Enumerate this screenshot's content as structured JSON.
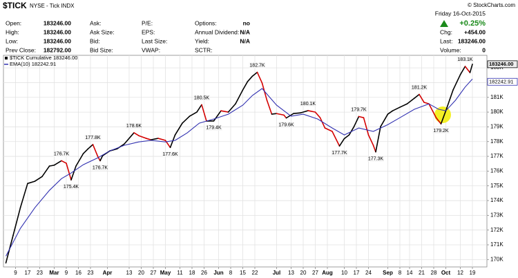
{
  "quote": {
    "copyright": "© StockCharts.com",
    "rows": [
      [
        {
          "label": "Open:",
          "value": "183246.00"
        },
        {
          "label": "Ask:"
        },
        {
          "label": "P/E:"
        },
        {
          "label": "Options:",
          "value": "no"
        }
      ],
      [
        {
          "label": "High:",
          "value": "183246.00"
        },
        {
          "label": "Ask Size:"
        },
        {
          "label": "EPS:"
        },
        {
          "label": "Annual Dividend:",
          "value": "N/A"
        }
      ],
      [
        {
          "label": "Low:",
          "value": "183246.00"
        },
        {
          "label": "Bid:"
        },
        {
          "label": "Last Size:"
        },
        {
          "label": "Yield:",
          "value": "N/A"
        }
      ],
      [
        {
          "label": "Prev Close:",
          "value": "182792.00"
        },
        {
          "label": "Bid Size:"
        },
        {
          "label": "VWAP:"
        },
        {
          "label": "SCTR:"
        }
      ]
    ],
    "date": "Friday  16-Oct-2015",
    "change_pct": "+0.25%",
    "summary": [
      {
        "label": "Chg:",
        "value": "+454.00"
      },
      {
        "label": "Last:",
        "value": "183246.00"
      },
      {
        "label": "Volume:",
        "value": "0"
      }
    ]
  },
  "chart_data": {
    "type": "line",
    "title": "$TICK",
    "subtitle": "NYSE - Tick INDX",
    "xlim": [
      0,
      200
    ],
    "ylim": [
      169500,
      183850
    ],
    "grid": true,
    "xticks": [
      {
        "value": 5,
        "label": "9"
      },
      {
        "value": 10,
        "label": "17"
      },
      {
        "value": 15,
        "label": "23"
      },
      {
        "value": 21,
        "label": "Mar"
      },
      {
        "value": 26,
        "label": "9"
      },
      {
        "value": 31,
        "label": "16"
      },
      {
        "value": 36,
        "label": "23"
      },
      {
        "value": 43,
        "label": "Apr"
      },
      {
        "value": 52,
        "label": "13"
      },
      {
        "value": 57,
        "label": "20"
      },
      {
        "value": 62,
        "label": "27"
      },
      {
        "value": 67,
        "label": "May"
      },
      {
        "value": 73,
        "label": "11"
      },
      {
        "value": 78,
        "label": "18"
      },
      {
        "value": 83,
        "label": "26"
      },
      {
        "value": 89,
        "label": "Jun"
      },
      {
        "value": 94,
        "label": "8"
      },
      {
        "value": 99,
        "label": "15"
      },
      {
        "value": 104,
        "label": "22"
      },
      {
        "value": 113,
        "label": "Jul"
      },
      {
        "value": 119,
        "label": "13"
      },
      {
        "value": 124,
        "label": "20"
      },
      {
        "value": 129,
        "label": "27"
      },
      {
        "value": 134,
        "label": "Aug"
      },
      {
        "value": 141,
        "label": "10"
      },
      {
        "value": 146,
        "label": "17"
      },
      {
        "value": 151,
        "label": "24"
      },
      {
        "value": 159,
        "label": "Sep"
      },
      {
        "value": 164,
        "label": "8"
      },
      {
        "value": 168,
        "label": "14"
      },
      {
        "value": 173,
        "label": "21"
      },
      {
        "value": 178,
        "label": "28"
      },
      {
        "value": 183,
        "label": "Oct"
      },
      {
        "value": 189,
        "label": "12"
      },
      {
        "value": 194,
        "label": "19"
      }
    ],
    "yticks": [
      {
        "value": 170000,
        "label": "170K"
      },
      {
        "value": 171000,
        "label": "171K"
      },
      {
        "value": 172000,
        "label": "172K"
      },
      {
        "value": 173000,
        "label": "173K"
      },
      {
        "value": 174000,
        "label": "174K"
      },
      {
        "value": 175000,
        "label": "175K"
      },
      {
        "value": 176000,
        "label": "176K"
      },
      {
        "value": 177000,
        "label": "177K"
      },
      {
        "value": 178000,
        "label": "178K"
      },
      {
        "value": 179000,
        "label": "179K"
      },
      {
        "value": 180000,
        "label": "180K"
      },
      {
        "value": 181000,
        "label": "181K"
      },
      {
        "value": 182000,
        "label": "182K"
      },
      {
        "value": 183000,
        "label": "183K"
      }
    ],
    "series": [
      {
        "name": "$TICK Cumulative",
        "last_label": "183246.00",
        "color": "#000000",
        "down_color": "#d40000",
        "x": [
          1,
          4,
          7,
          10,
          13,
          16,
          19,
          21,
          24,
          26,
          28,
          30,
          33,
          35,
          37,
          39,
          40,
          41,
          44,
          47,
          50,
          54,
          56,
          59,
          61,
          64,
          67,
          69,
          71,
          74,
          77,
          80,
          82,
          84,
          87,
          90,
          93,
          96,
          99,
          101,
          103,
          105,
          107,
          109,
          111,
          113,
          116,
          117,
          120,
          123,
          126,
          129,
          131,
          133,
          136,
          139,
          141,
          143,
          145,
          147,
          149,
          151,
          153,
          154,
          156,
          159,
          161,
          164,
          167,
          170,
          172,
          174,
          176,
          179,
          181,
          183,
          186,
          189,
          191,
          193,
          194
        ],
        "values": [
          169770,
          171640,
          173520,
          175160,
          175310,
          175630,
          176340,
          176400,
          176700,
          176530,
          175400,
          176340,
          177180,
          177510,
          177800,
          177000,
          176700,
          177040,
          177370,
          177510,
          177840,
          178600,
          178400,
          178220,
          178120,
          178220,
          178080,
          177600,
          178450,
          179250,
          179720,
          180000,
          180500,
          179390,
          179400,
          180090,
          180000,
          180560,
          181500,
          182070,
          182440,
          182700,
          181970,
          180800,
          179860,
          179900,
          179800,
          179600,
          179900,
          179950,
          180100,
          180000,
          179620,
          178920,
          178690,
          177700,
          178200,
          178450,
          179010,
          179700,
          179620,
          178450,
          177750,
          177300,
          179010,
          179860,
          180090,
          180330,
          180560,
          180940,
          181200,
          180660,
          180560,
          179620,
          179200,
          180090,
          181500,
          182540,
          183100,
          182680,
          183246
        ]
      },
      {
        "name": "EMA(10)",
        "last_label": "182242.91",
        "color": "#3030b0",
        "x": [
          1,
          7,
          13,
          19,
          24,
          28,
          33,
          39,
          44,
          50,
          56,
          61,
          67,
          71,
          76,
          81,
          87,
          93,
          99,
          103,
          107,
          110,
          113,
          119,
          124,
          130,
          136,
          141,
          147,
          153,
          159,
          164,
          170,
          176,
          180,
          183,
          187,
          191,
          194
        ],
        "values": [
          170230,
          172110,
          173520,
          174690,
          175490,
          175870,
          176430,
          176900,
          177370,
          177750,
          177980,
          178080,
          177980,
          178080,
          178590,
          179250,
          179530,
          179860,
          180470,
          181130,
          181600,
          181030,
          180470,
          179720,
          179860,
          179530,
          178920,
          178450,
          178920,
          178690,
          179150,
          179620,
          180190,
          180560,
          180190,
          180090,
          180800,
          181700,
          182242.91
        ]
      }
    ],
    "annotations": {
      "x": [
        24,
        28,
        37,
        40,
        54,
        69,
        82,
        87,
        105,
        117,
        126,
        139,
        147,
        154,
        172,
        181,
        191
      ],
      "values": [
        176700,
        175400,
        177800,
        176700,
        178600,
        177600,
        180500,
        179400,
        182700,
        179600,
        180100,
        177700,
        179700,
        177300,
        181200,
        179200,
        183100
      ],
      "value_labels": [
        "176.7K",
        "175.4K",
        "177.8K",
        "176.7K",
        "178.6K",
        "177.6K",
        "180.5K",
        "179.4K",
        "182.7K",
        "179.6K",
        "180.1K",
        "177.7K",
        "179.7K",
        "177.3K",
        "181.2K",
        "179.2K",
        "183.1K"
      ]
    }
  }
}
